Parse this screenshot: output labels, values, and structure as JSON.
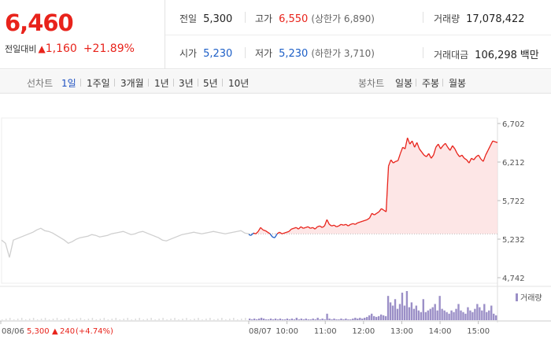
{
  "quote": {
    "price": "6,460",
    "change_label": "전일대비",
    "change_arrow": "▲",
    "change_abs": "1,160",
    "change_pct": "+21.89%"
  },
  "stats": {
    "prev": {
      "label": "전일",
      "value": "5,300"
    },
    "high": {
      "label": "고가",
      "value": "6,550",
      "limit": "(상한가 6,890)"
    },
    "volume": {
      "label": "거래량",
      "value": "17,078,422"
    },
    "open": {
      "label": "시가",
      "value": "5,230"
    },
    "low": {
      "label": "저가",
      "value": "5,230",
      "limit": "(하한가 3,710)"
    },
    "amount": {
      "label": "거래대금",
      "value": "106,298",
      "unit": "백만"
    }
  },
  "toolbar": {
    "line_label": "선차트",
    "line_periods": [
      "1일",
      "1주일",
      "3개월",
      "1년",
      "3년",
      "5년",
      "10년"
    ],
    "active_period": "1일",
    "candle_label": "봉차트",
    "candle_periods": [
      "일봉",
      "주봉",
      "월봉"
    ]
  },
  "colors": {
    "up": "#e8231b",
    "down": "#1d5fc7",
    "prev_day_line": "#cfcfcf",
    "fill": "#fde0e0",
    "volume": "#9b8fc7"
  },
  "chart_data": {
    "type": "line",
    "y_ticks": [
      "6,702",
      "6,212",
      "5,722",
      "5,232",
      "4,742"
    ],
    "ylim": [
      4742,
      6702
    ],
    "baseline": 5300,
    "volume_legend": "거래량",
    "prev_day": {
      "date": "08/06",
      "close": "5,300",
      "arrow": "▲",
      "change": "240",
      "pct": "(+4.74%)",
      "values": [
        5220,
        5180,
        5000,
        5220,
        5240,
        5260,
        5280,
        5300,
        5320,
        5350,
        5370,
        5340,
        5330,
        5310,
        5280,
        5250,
        5220,
        5180,
        5200,
        5230,
        5250,
        5260,
        5270,
        5290,
        5280,
        5260,
        5270,
        5280,
        5300,
        5310,
        5320,
        5330,
        5310,
        5290,
        5300,
        5320,
        5330,
        5310,
        5290,
        5270,
        5250,
        5220,
        5210,
        5230,
        5250,
        5270,
        5290,
        5300,
        5310,
        5320,
        5310,
        5300,
        5310,
        5320,
        5330,
        5320,
        5310,
        5300,
        5310,
        5320,
        5330,
        5340,
        5310,
        5300
      ]
    },
    "today": {
      "date": "08/07",
      "x_ticks": [
        "10:00",
        "11:00",
        "12:00",
        "13:00",
        "14:00",
        "15:00"
      ],
      "values": [
        5290,
        5280,
        5310,
        5300,
        5330,
        5380,
        5350,
        5340,
        5320,
        5300,
        5260,
        5250,
        5300,
        5320,
        5300,
        5310,
        5320,
        5330,
        5360,
        5370,
        5380,
        5360,
        5390,
        5370,
        5380,
        5390,
        5370,
        5380,
        5360,
        5390,
        5400,
        5380,
        5400,
        5480,
        5420,
        5400,
        5410,
        5390,
        5400,
        5420,
        5410,
        5420,
        5400,
        5420,
        5430,
        5420,
        5440,
        5450,
        5460,
        5470,
        5480,
        5500,
        5560,
        5540,
        5560,
        5580,
        5620,
        5600,
        5580,
        6160,
        6240,
        6200,
        6220,
        6230,
        6320,
        6400,
        6380,
        6520,
        6440,
        6480,
        6400,
        6460,
        6380,
        6340,
        6300,
        6280,
        6320,
        6260,
        6300,
        6400,
        6440,
        6380,
        6420,
        6450,
        6400,
        6360,
        6420,
        6380,
        6320,
        6280,
        6300,
        6260,
        6240,
        6200,
        6260,
        6240,
        6280,
        6300,
        6250,
        6220,
        6300,
        6360,
        6420,
        6480,
        6470,
        6460
      ],
      "volume": [
        2,
        1,
        2,
        1,
        2,
        3,
        2,
        1,
        1,
        2,
        1,
        2,
        1,
        2,
        1,
        1,
        2,
        1,
        2,
        1,
        3,
        1,
        2,
        1,
        2,
        1,
        1,
        2,
        1,
        3,
        1,
        2,
        1,
        8,
        2,
        1,
        2,
        1,
        1,
        2,
        1,
        2,
        1,
        1,
        2,
        3,
        2,
        3,
        2,
        3,
        4,
        6,
        8,
        5,
        4,
        5,
        7,
        6,
        5,
        30,
        22,
        18,
        26,
        14,
        20,
        34,
        18,
        36,
        16,
        22,
        14,
        18,
        12,
        10,
        26,
        10,
        12,
        14,
        16,
        20,
        12,
        30,
        14,
        12,
        10,
        8,
        12,
        10,
        14,
        20,
        12,
        10,
        8,
        16,
        12,
        10,
        14,
        20,
        16,
        12,
        20,
        10,
        12,
        18,
        8,
        6
      ]
    }
  }
}
